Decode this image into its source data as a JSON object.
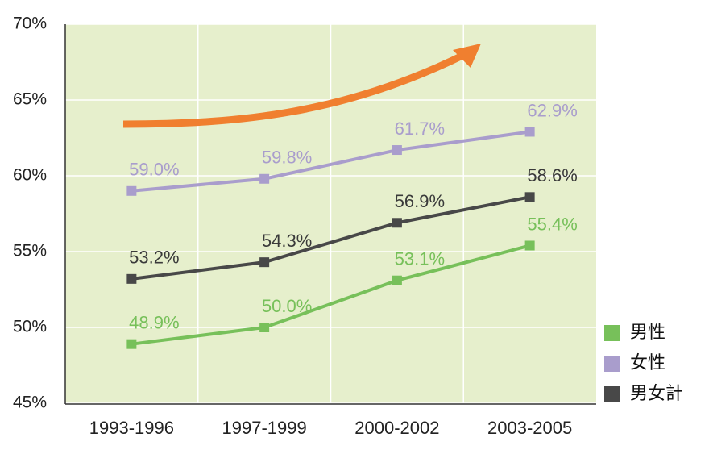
{
  "chart_data": {
    "type": "line",
    "categories": [
      "1993-1996",
      "1997-1999",
      "2000-2002",
      "2003-2005"
    ],
    "series": [
      {
        "name": "男性",
        "color": "#77c05a",
        "label_color": "#77c05a",
        "values": [
          48.9,
          50.0,
          53.1,
          55.4
        ],
        "value_labels": [
          "48.9%",
          "50.0%",
          "53.1%",
          "55.4%"
        ]
      },
      {
        "name": "女性",
        "color": "#a99dcc",
        "label_color": "#a99dcc",
        "values": [
          59.0,
          59.8,
          61.7,
          62.9
        ],
        "value_labels": [
          "59.0%",
          "59.8%",
          "61.7%",
          "62.9%"
        ]
      },
      {
        "name": "男女計",
        "color": "#484848",
        "label_color": "#3a3a3a",
        "values": [
          53.2,
          54.3,
          56.9,
          58.6
        ],
        "value_labels": [
          "53.2%",
          "54.3%",
          "56.9%",
          "58.6%"
        ]
      }
    ],
    "ylim": [
      45,
      70
    ],
    "yticks": [
      {
        "value": 45,
        "label": "45%"
      },
      {
        "value": 50,
        "label": "50%"
      },
      {
        "value": 55,
        "label": "55%"
      },
      {
        "value": 60,
        "label": "60%"
      },
      {
        "value": 65,
        "label": "65%"
      },
      {
        "value": 70,
        "label": "70%"
      }
    ],
    "grid": true,
    "legend": "lower right"
  }
}
